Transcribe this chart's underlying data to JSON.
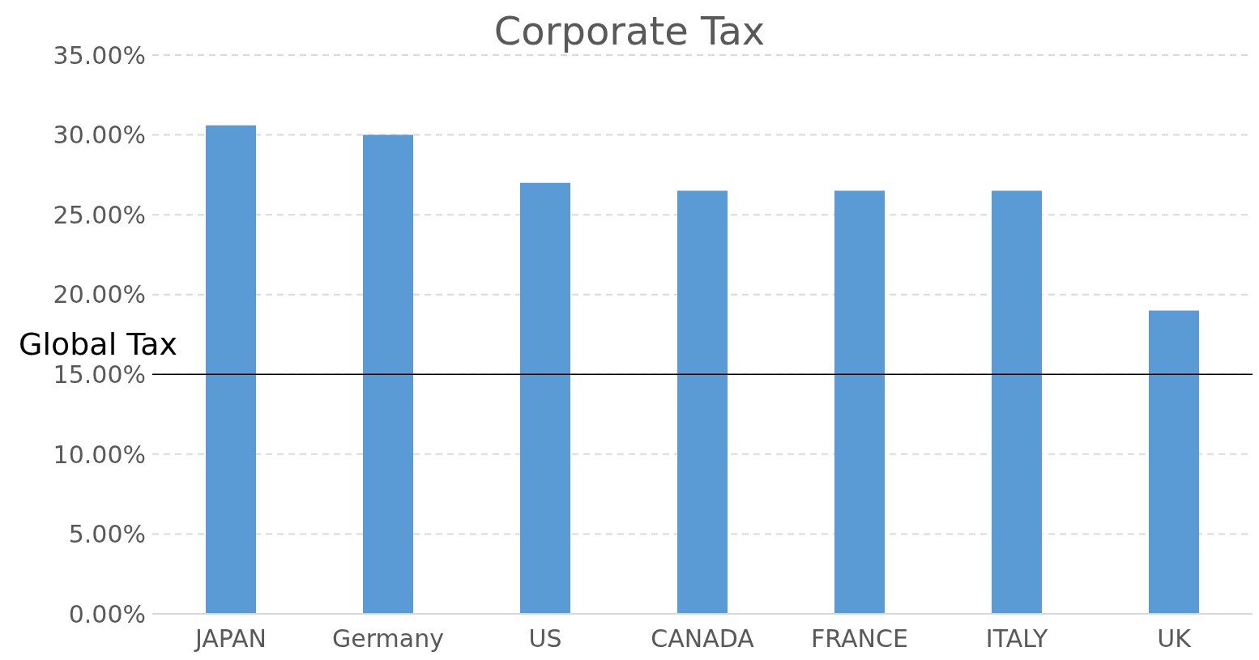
{
  "chart_data": {
    "type": "bar",
    "title": "Corporate Tax",
    "categories": [
      "JAPAN",
      "Germany",
      "US",
      "CANADA",
      "FRANCE",
      "ITALY",
      "UK"
    ],
    "values": [
      30.6,
      30,
      27,
      26.5,
      26.5,
      26.5,
      19
    ],
    "color": "#5b9bd5",
    "ylim": [
      0,
      35
    ],
    "yticks": [
      {
        "value": 0,
        "label": "0.00%"
      },
      {
        "value": 5,
        "label": "5.00%"
      },
      {
        "value": 10,
        "label": "10.00%"
      },
      {
        "value": 15,
        "label": "15.00%"
      },
      {
        "value": 20,
        "label": "20.00%"
      },
      {
        "value": 25,
        "label": "25.00%"
      },
      {
        "value": 30,
        "label": "30.00%"
      },
      {
        "value": 35,
        "label": "35.00%"
      }
    ],
    "grid": "y",
    "ref_lines": [
      {
        "axis": "y",
        "value": 15,
        "label": "Global Tax",
        "color": "#000000"
      }
    ]
  }
}
